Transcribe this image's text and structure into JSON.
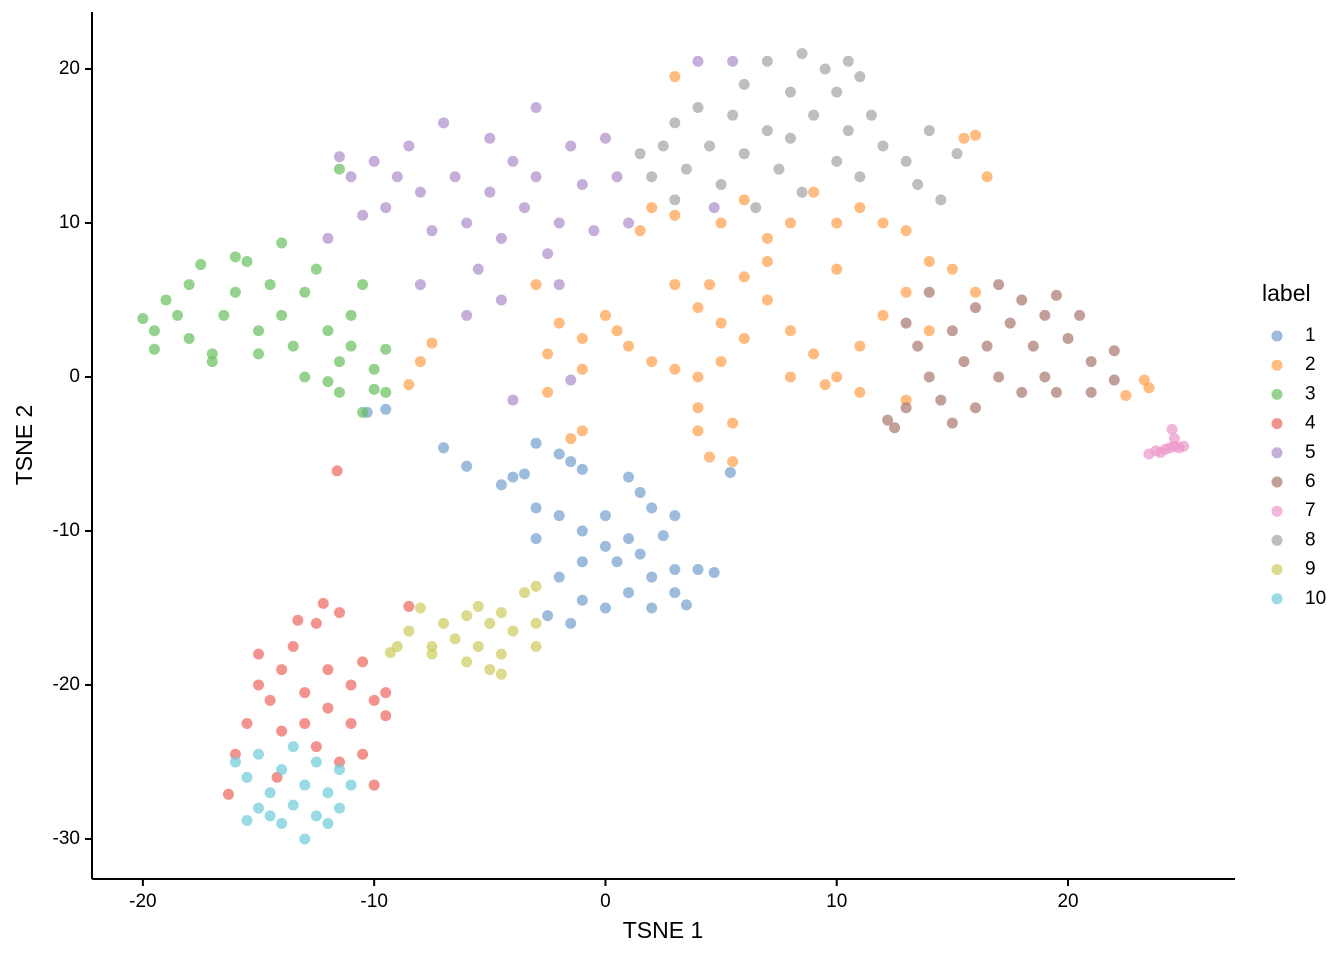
{
  "chart_data": {
    "type": "scatter",
    "x_label": "TSNE 1",
    "y_label": "TSNE 2",
    "legend_title": "label",
    "legend_position": "right",
    "xlim": [
      -22.2,
      27.22
    ],
    "ylim": [
      -32.6,
      23.7
    ],
    "xticks": [
      -20,
      -10,
      0,
      10,
      20
    ],
    "yticks": [
      -30,
      -20,
      -10,
      0,
      10,
      20
    ],
    "grid": false,
    "series": [
      {
        "name": "1",
        "color": "#729ECE",
        "x": [
          -4.5,
          -4,
          -3.5,
          -3,
          -2,
          -1.5,
          -1,
          -3,
          -2,
          -3,
          -1,
          0,
          1,
          1.5,
          2,
          3,
          2.5,
          1,
          0,
          -1,
          -2,
          -1,
          0,
          1,
          2,
          3,
          4,
          4.7,
          3,
          2,
          -2.5,
          -1.5,
          0.5,
          -7,
          -6,
          -9.5,
          -10.3,
          5.4,
          3.5,
          1.5
        ],
        "y": [
          -7,
          -6.5,
          -6.3,
          -4.3,
          -5,
          -5.5,
          -6,
          -8.5,
          -9,
          -10.5,
          -10,
          -9,
          -6.5,
          -7.5,
          -8.5,
          -9,
          -10.3,
          -10.5,
          -11,
          -12,
          -13,
          -14.5,
          -15,
          -14,
          -13,
          -12.5,
          -12.5,
          -12.7,
          -14,
          -15,
          -15.5,
          -16,
          -12,
          -4.6,
          -5.8,
          -2.1,
          -2.3,
          -6.2,
          -14.8,
          -11.5
        ]
      },
      {
        "name": "2",
        "color": "#FF9E4A",
        "x": [
          -3,
          -2,
          -1,
          0,
          0.5,
          1,
          -2.5,
          -1,
          2,
          3,
          4,
          5,
          6,
          5,
          4,
          3,
          4.5,
          6,
          7,
          8,
          9,
          8,
          10,
          11,
          12,
          13,
          14,
          12,
          10,
          9,
          8,
          7,
          5,
          3,
          2,
          1.5,
          11,
          13,
          15,
          16,
          14,
          13,
          11,
          9.5,
          4,
          4,
          5.5,
          5.5,
          4.5,
          -8,
          -7.5,
          -8.5,
          15.5,
          16.5,
          3,
          -1.5,
          -2.5,
          7,
          10,
          6,
          -1,
          16,
          23.5,
          22.5,
          23.3
        ],
        "y": [
          6,
          3.5,
          2.5,
          4,
          3,
          2,
          1.5,
          0.5,
          1,
          0.5,
          0,
          1,
          2.5,
          3.5,
          4.5,
          6,
          6,
          6.5,
          5,
          3,
          1.5,
          0,
          0,
          2,
          4,
          5.5,
          7.5,
          10,
          10,
          12,
          10,
          9,
          10,
          10.5,
          11,
          9.5,
          11,
          9.5,
          7,
          5.5,
          3,
          -1.5,
          -1,
          -0.5,
          -2,
          -3.5,
          -3,
          -5.5,
          -5.2,
          1,
          2.2,
          -0.5,
          15.5,
          13,
          19.5,
          -4,
          -1,
          7.5,
          7,
          11.5,
          -3.5,
          15.7,
          -0.7,
          -1.2,
          -0.2
        ]
      },
      {
        "name": "3",
        "color": "#67BF5C",
        "x": [
          -20,
          -19.5,
          -19.5,
          -19,
          -18.5,
          -18,
          -17.5,
          -18,
          -17,
          -16.5,
          -16,
          -15.5,
          -15,
          -14.5,
          -14,
          -14,
          -13.5,
          -13,
          -12.5,
          -12,
          -11.5,
          -12,
          -11,
          -11,
          -10.5,
          -10,
          -9.5,
          -10.5,
          -11.5,
          -11.5,
          -17,
          -15,
          -13,
          -16,
          -10,
          -9.5
        ],
        "y": [
          3.8,
          3,
          1.8,
          5,
          4,
          6,
          7.3,
          2.5,
          1.5,
          4,
          5.5,
          7.5,
          3,
          6,
          8.7,
          4,
          2,
          5.5,
          7,
          3,
          1,
          -0.3,
          4,
          2,
          6,
          0.5,
          1.8,
          -2.3,
          -1,
          13.5,
          1,
          1.5,
          0,
          7.8,
          -0.8,
          -1
        ]
      },
      {
        "name": "4",
        "color": "#ED665D",
        "x": [
          -16,
          -15.5,
          -15,
          -15,
          -14.5,
          -14,
          -14,
          -13.5,
          -13,
          -13,
          -12.5,
          -12.5,
          -12,
          -12,
          -11.5,
          -11,
          -11,
          -10.5,
          -10.5,
          -10,
          -9.5,
          -10,
          -9.5,
          -12.2,
          -11.6,
          -8.5,
          -16.3,
          -14.2,
          -11.5,
          -13.3
        ],
        "y": [
          -24.5,
          -22.5,
          -20,
          -18,
          -21,
          -23,
          -19,
          -17.5,
          -20.5,
          -22.5,
          -16,
          -24,
          -19,
          -21.5,
          -25,
          -20,
          -22.5,
          -18.5,
          -24.5,
          -21,
          -22,
          -26.5,
          -20.5,
          -14.7,
          -6.1,
          -14.9,
          -27.1,
          -26,
          -15.3,
          -15.8
        ]
      },
      {
        "name": "5",
        "color": "#AD8BC9",
        "x": [
          -11.5,
          -11,
          -10.5,
          -10,
          -9.5,
          -9,
          -8.5,
          -8,
          -7.5,
          -7,
          -6.5,
          -6,
          -5.5,
          -5,
          -5,
          -4.5,
          -4,
          -3.5,
          -3,
          -3,
          -2.5,
          -2,
          -1.5,
          -1,
          -0.5,
          0,
          -2,
          -4.5,
          -6,
          -8,
          1,
          4,
          5.5,
          4.7,
          -4,
          -1.5,
          -12,
          0.5
        ],
        "y": [
          14.3,
          13,
          10.5,
          14,
          11,
          13,
          15,
          12,
          9.5,
          16.5,
          13,
          10,
          7,
          15.5,
          12,
          9,
          14,
          11,
          17.5,
          13,
          8,
          10,
          15,
          12.5,
          9.5,
          15.5,
          6,
          5,
          4,
          6,
          10,
          20.5,
          20.5,
          11,
          -1.5,
          -0.2,
          9,
          13
        ]
      },
      {
        "name": "6",
        "color": "#A8786E",
        "x": [
          13,
          13.5,
          14,
          14,
          14.5,
          15,
          15.5,
          16,
          16,
          16.5,
          17,
          17,
          17.5,
          18,
          18,
          18.5,
          19,
          19,
          19.5,
          20,
          20.5,
          21,
          21,
          22,
          22,
          12.5,
          13,
          15,
          12.2,
          19.5
        ],
        "y": [
          3.5,
          2,
          0,
          5.5,
          -1.5,
          3,
          1,
          4.5,
          -2,
          2,
          6,
          0,
          3.5,
          -1,
          5,
          2,
          4,
          0,
          -1,
          2.5,
          4,
          1,
          -1,
          -0.2,
          1.7,
          -3.3,
          -2,
          -3,
          -2.8,
          5.3
        ]
      },
      {
        "name": "7",
        "color": "#ED97CA",
        "x": [
          23.5,
          23.8,
          24,
          24.2,
          24.4,
          24.6,
          24.8,
          24.5,
          24.6,
          25
        ],
        "y": [
          -5,
          -4.8,
          -4.9,
          -4.7,
          -4.6,
          -4.5,
          -4.6,
          -3.4,
          -4,
          -4.5
        ]
      },
      {
        "name": "8",
        "color": "#A2A2A2",
        "x": [
          1.5,
          2,
          2.5,
          3,
          3.5,
          4,
          4.5,
          5,
          5.5,
          6,
          6,
          6.5,
          7,
          7,
          7.5,
          8,
          8,
          8.5,
          8.5,
          9,
          9.5,
          10,
          10,
          10.5,
          10.5,
          11,
          11,
          11.5,
          12,
          13,
          13.5,
          14,
          15.2,
          14.5,
          3
        ],
        "y": [
          14.5,
          13,
          15,
          16.5,
          13.5,
          17.5,
          15,
          12.5,
          17,
          19,
          14.5,
          11,
          16,
          20.5,
          13.5,
          18.5,
          15.5,
          21,
          12,
          17,
          20,
          14,
          18.5,
          20.5,
          16,
          13,
          19.5,
          17,
          15,
          14,
          12.5,
          16,
          14.5,
          11.5,
          11.5
        ]
      },
      {
        "name": "9",
        "color": "#CDCC5D",
        "x": [
          -9,
          -8.5,
          -8,
          -7.5,
          -7,
          -6.5,
          -6,
          -6,
          -5.5,
          -5,
          -5,
          -4.5,
          -4.5,
          -4,
          -3.5,
          -3,
          -3,
          -3,
          -7.5,
          -9.3,
          -4.5,
          -5.5
        ],
        "y": [
          -17.5,
          -16.5,
          -15,
          -18,
          -16,
          -17,
          -15.5,
          -18.5,
          -17.5,
          -16,
          -19,
          -18,
          -15.3,
          -16.5,
          -14,
          -13.6,
          -16,
          -17.5,
          -17.5,
          -17.9,
          -19.3,
          -14.9
        ]
      },
      {
        "name": "10",
        "color": "#6DCCDA",
        "x": [
          -16,
          -15.5,
          -15,
          -15,
          -14.5,
          -14,
          -14,
          -13.5,
          -13,
          -13,
          -12.5,
          -12.5,
          -12,
          -11.5,
          -11,
          -11.5,
          -13.5,
          -12,
          -14.5,
          -15.5
        ],
        "y": [
          -25,
          -26,
          -28,
          -24.5,
          -27,
          -29,
          -25.5,
          -27.8,
          -26.5,
          -30,
          -28.5,
          -25,
          -27,
          -28,
          -26.5,
          -25.5,
          -24,
          -29,
          -28.5,
          -28.8
        ]
      }
    ]
  }
}
